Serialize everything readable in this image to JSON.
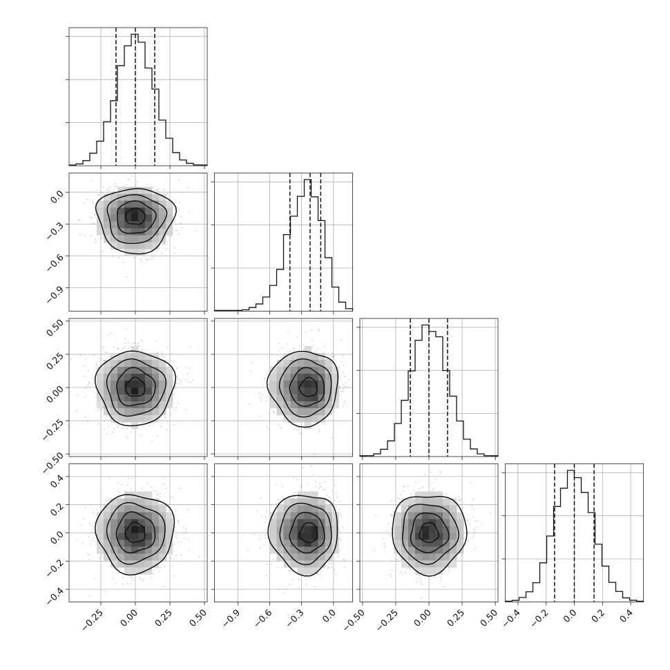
{
  "chart_data": {
    "type": "corner",
    "n_params": 4,
    "params": [
      {
        "index": 0,
        "median": 0.0,
        "q16": -0.14,
        "q84": 0.14,
        "std": 0.14,
        "range": [
          -0.48,
          0.52
        ],
        "ticks": [
          -0.25,
          0.0,
          0.25,
          0.5
        ]
      },
      {
        "index": 1,
        "median": -0.22,
        "q16": -0.41,
        "q84": -0.12,
        "std": 0.13,
        "range": [
          -1.12,
          0.18
        ],
        "ticks": [
          -0.9,
          -0.6,
          -0.3,
          0.0
        ]
      },
      {
        "index": 2,
        "median": 0.0,
        "q16": -0.14,
        "q84": 0.14,
        "std": 0.14,
        "range": [
          -0.52,
          0.52
        ],
        "ticks": [
          -0.5,
          -0.25,
          0.0,
          0.25,
          0.5
        ]
      },
      {
        "index": 3,
        "median": 0.0,
        "q16": -0.14,
        "q84": 0.14,
        "std": 0.14,
        "range": [
          -0.49,
          0.49
        ],
        "ticks": [
          -0.4,
          -0.2,
          0.0,
          0.2,
          0.4
        ]
      }
    ],
    "tick_labels": {
      "p0": [
        "−0.25",
        "0.00",
        "0.25",
        "0.50"
      ],
      "p1": [
        "−0.9",
        "−0.6",
        "−0.3",
        "0.0"
      ],
      "p2": [
        "−0.50",
        "−0.25",
        "0.00",
        "0.25",
        "0.50"
      ],
      "p3": [
        "−0.4",
        "−0.2",
        "0.0",
        "0.2",
        "0.4"
      ]
    },
    "quantiles": [
      0.16,
      0.5,
      0.84
    ],
    "contour_levels": [
      "0.5σ",
      "1σ",
      "1.5σ",
      "2σ"
    ],
    "diagonal": "1D histograms with dashed quantile lines",
    "off_diagonal": "2D density: scatter points, gray-shaded bins, black contours",
    "grid": true,
    "title": "",
    "colors": {
      "line": "#111111",
      "points": "#9a9a9a",
      "grid": "#b0b0b0"
    }
  }
}
